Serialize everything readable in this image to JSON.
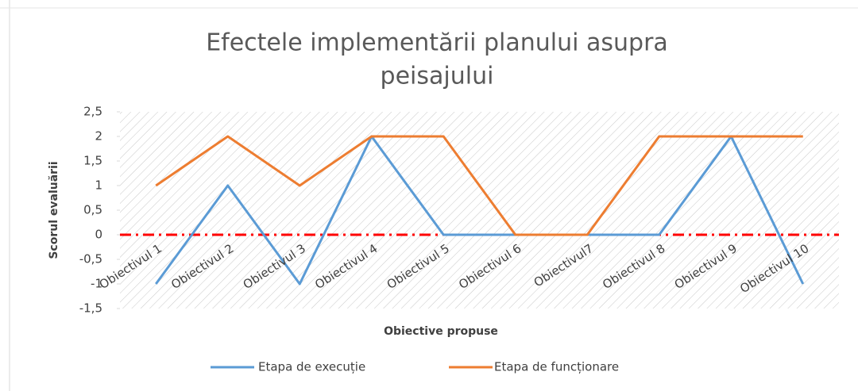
{
  "chart_data": {
    "type": "line",
    "title": [
      "Efectele implementării planului asupra",
      "peisajului"
    ],
    "y_label": "Scorul evaluării",
    "x_label": "Obiective propuse",
    "categories": [
      "Obiectivul 1",
      "Obiectivul 2",
      "Obiectivul 3",
      "Obiectivul 4",
      "Obiectivul 5",
      "Obiectivul 6",
      "Obiectivul7",
      "Obiectivul 8",
      "Obiectivul 9",
      "Obiectivul 10"
    ],
    "series": [
      {
        "name": "Etapa de execuție",
        "color": "#5b9bd5",
        "values": [
          -1,
          1,
          -1,
          2,
          0,
          0,
          0,
          0,
          2,
          -1
        ]
      },
      {
        "name": "Etapa de funcționare",
        "color": "#ed7d31",
        "values": [
          1,
          2,
          1,
          2,
          2,
          0,
          0,
          2,
          2,
          2
        ]
      }
    ],
    "ylim": [
      -1.5,
      2.5
    ],
    "yticks": [
      {
        "value": -1.5,
        "label": "-1,5"
      },
      -1,
      {
        "value": -0.5,
        "label": "-0,5"
      },
      0,
      {
        "value": 0.5,
        "label": "0,5"
      },
      1,
      {
        "value": 1.5,
        "label": "1,5"
      },
      2,
      {
        "value": 2.5,
        "label": "2,5"
      }
    ],
    "reference_line": 0,
    "reference_color": "#ff0000",
    "legend": "bottom"
  }
}
